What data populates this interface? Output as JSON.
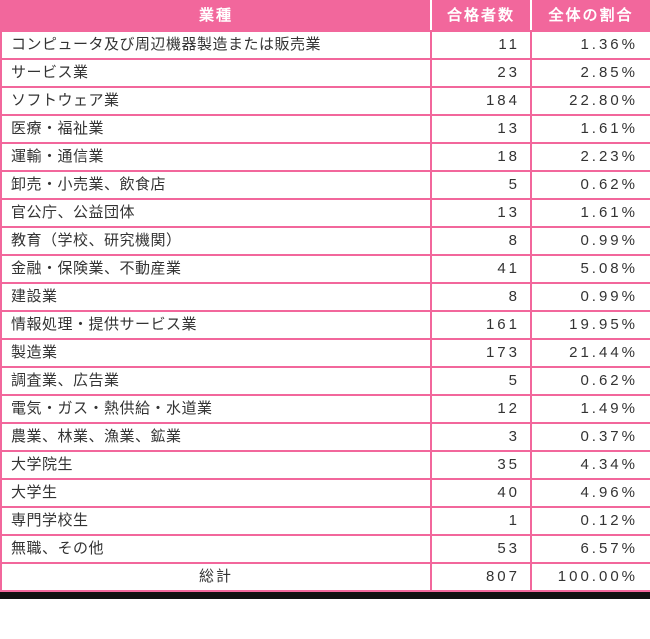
{
  "colors": {
    "header_bg": "#f2679c",
    "border": "#f2679c",
    "text": "#333333",
    "header_text": "#ffffff",
    "bottom_bar": "#111111"
  },
  "chart_data": {
    "type": "table",
    "columns": [
      "業種",
      "合格者数",
      "全体の割合"
    ],
    "rows": [
      {
        "industry": "コンピュータ及び周辺機器製造または販売業",
        "count": "11",
        "percent": "1.36%"
      },
      {
        "industry": "サービス業",
        "count": "23",
        "percent": "2.85%"
      },
      {
        "industry": "ソフトウェア業",
        "count": "184",
        "percent": "22.80%"
      },
      {
        "industry": "医療・福祉業",
        "count": "13",
        "percent": "1.61%"
      },
      {
        "industry": "運輸・通信業",
        "count": "18",
        "percent": "2.23%"
      },
      {
        "industry": "卸売・小売業、飲食店",
        "count": "5",
        "percent": "0.62%"
      },
      {
        "industry": "官公庁、公益団体",
        "count": "13",
        "percent": "1.61%"
      },
      {
        "industry": "教育（学校、研究機関）",
        "count": "8",
        "percent": "0.99%"
      },
      {
        "industry": "金融・保険業、不動産業",
        "count": "41",
        "percent": "5.08%"
      },
      {
        "industry": "建設業",
        "count": "8",
        "percent": "0.99%"
      },
      {
        "industry": "情報処理・提供サービス業",
        "count": "161",
        "percent": "19.95%"
      },
      {
        "industry": "製造業",
        "count": "173",
        "percent": "21.44%"
      },
      {
        "industry": "調査業、広告業",
        "count": "5",
        "percent": "0.62%"
      },
      {
        "industry": "電気・ガス・熱供給・水道業",
        "count": "12",
        "percent": "1.49%"
      },
      {
        "industry": "農業、林業、漁業、鉱業",
        "count": "3",
        "percent": "0.37%"
      },
      {
        "industry": "大学院生",
        "count": "35",
        "percent": "4.34%"
      },
      {
        "industry": "大学生",
        "count": "40",
        "percent": "4.96%"
      },
      {
        "industry": "専門学校生",
        "count": "1",
        "percent": "0.12%"
      },
      {
        "industry": "無職、その他",
        "count": "53",
        "percent": "6.57%"
      }
    ],
    "total_row": {
      "industry": "総計",
      "count": "807",
      "percent": "100.00%"
    }
  }
}
